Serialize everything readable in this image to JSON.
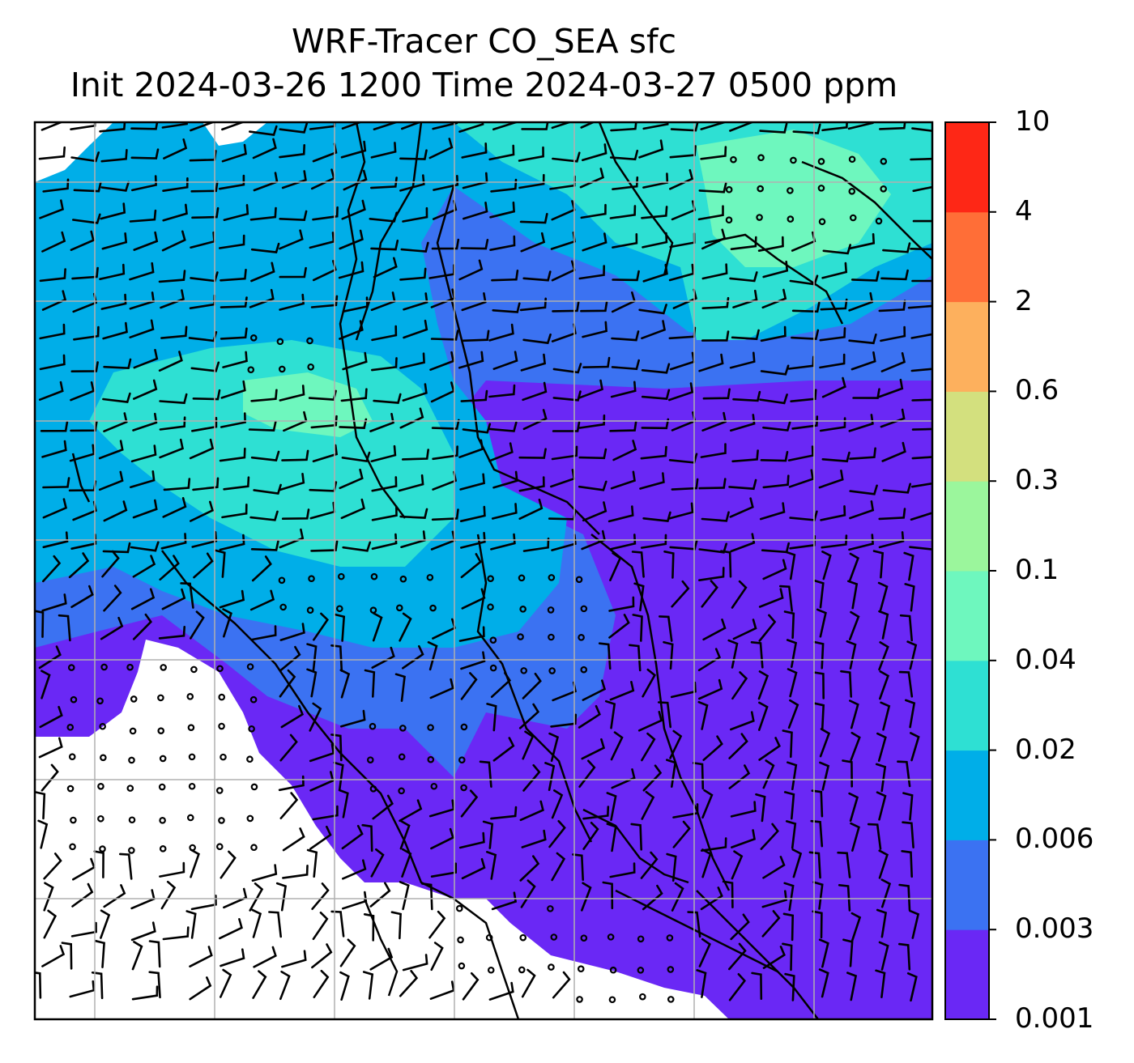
{
  "title": {
    "line1": "WRF-Tracer CO_SEA sfc",
    "line2": "Init 2024-03-26 1200 Time 2024-03-27 0500 ppm"
  },
  "colorbar": {
    "levels": [
      "0.001",
      "0.003",
      "0.006",
      "0.02",
      "0.04",
      "0.1",
      "0.3",
      "0.6",
      "2",
      "4",
      "10"
    ],
    "colors": [
      "#6a28f5",
      "#3b72f2",
      "#00aee8",
      "#2ee0d3",
      "#6ef7be",
      "#9bf69c",
      "#d3e07e",
      "#fdb05d",
      "#ff6e37",
      "#fe2716"
    ]
  },
  "map": {
    "field": "CO_SEA",
    "below_min_color": "#ffffff",
    "gridlines": true,
    "coastlines": true,
    "wind_barbs": true
  }
}
